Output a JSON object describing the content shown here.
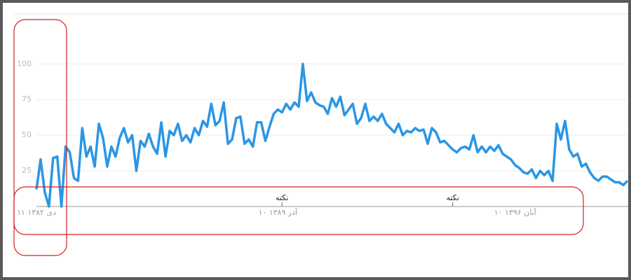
{
  "chart_data": {
    "type": "line",
    "color": "#2a96e6",
    "categories": [
      "۱۱ دی ۱۳۸۲",
      null,
      null,
      null,
      null,
      null,
      null,
      null,
      null,
      null,
      null,
      null,
      null,
      null,
      null,
      null,
      null,
      null,
      null,
      null,
      null,
      null,
      null,
      null,
      null,
      null,
      null,
      null,
      null,
      null,
      null,
      null,
      null,
      null,
      null,
      null,
      null,
      null,
      null,
      null,
      null,
      null,
      null,
      null,
      null,
      null,
      null,
      null,
      null,
      null,
      null,
      null,
      null,
      null,
      null,
      null,
      null,
      null,
      "۱۰ آذر ۱۳۸۹",
      null,
      null,
      null,
      null,
      null,
      null,
      null,
      null,
      null,
      null,
      null,
      null,
      null,
      null,
      null,
      null,
      null,
      null,
      null,
      null,
      null,
      null,
      null,
      null,
      null,
      null,
      null,
      null,
      null,
      null,
      null,
      null,
      null,
      null,
      null,
      null,
      null,
      null,
      null,
      null,
      null,
      null,
      null,
      null,
      null,
      null,
      null,
      null,
      null,
      null,
      null,
      null,
      null,
      null,
      null,
      null,
      "۱۰ آبان ۱۳۹۶",
      null,
      null,
      null,
      null,
      null,
      null,
      null,
      null,
      null,
      null,
      null,
      null,
      null,
      null,
      null,
      null,
      null,
      null,
      null,
      null,
      null,
      null,
      null,
      null,
      null,
      null,
      null
    ],
    "values": [
      12,
      33,
      10,
      0,
      34,
      35,
      0,
      42,
      38,
      20,
      18,
      55,
      35,
      42,
      28,
      58,
      48,
      28,
      42,
      35,
      48,
      55,
      45,
      50,
      25,
      46,
      42,
      51,
      42,
      37,
      59,
      35,
      53,
      50,
      58,
      46,
      50,
      45,
      55,
      50,
      60,
      56,
      72,
      57,
      60,
      73,
      44,
      47,
      62,
      63,
      44,
      47,
      42,
      59,
      59,
      46,
      56,
      65,
      68,
      66,
      72,
      68,
      73,
      70,
      100,
      74,
      80,
      73,
      71,
      70,
      65,
      76,
      70,
      77,
      64,
      68,
      72,
      58,
      62,
      72,
      60,
      63,
      60,
      65,
      58,
      55,
      52,
      58,
      50,
      53,
      52,
      55,
      53,
      54,
      44,
      55,
      52,
      45,
      46,
      43,
      40,
      38,
      41,
      42,
      40,
      50,
      38,
      42,
      38,
      42,
      39,
      43,
      37,
      35,
      33,
      29,
      27,
      24,
      23,
      26,
      20,
      25,
      22,
      25,
      18,
      58,
      47,
      60,
      40,
      35,
      37,
      28,
      30,
      24,
      20,
      18,
      21,
      21,
      19,
      17,
      17,
      15,
      18
    ],
    "ylim": [
      0,
      135
    ],
    "yticks": [
      25,
      50,
      75,
      100
    ],
    "grid": true,
    "annotations": [
      {
        "text": "نکته",
        "at": 59
      },
      {
        "text": "نکته",
        "at": 100
      }
    ]
  }
}
